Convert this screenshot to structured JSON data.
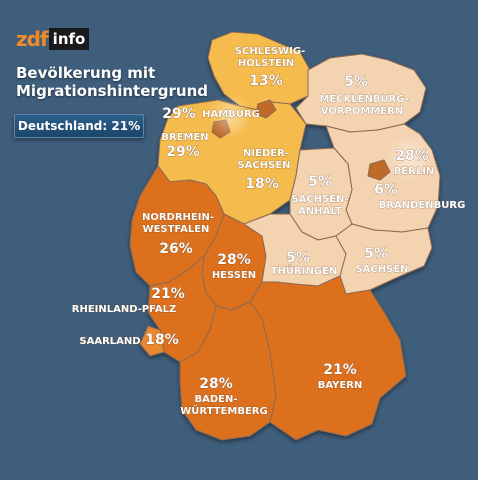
{
  "brand": {
    "zdf": "zdf",
    "info": "info",
    "accent": "#f08a24"
  },
  "title_line1": "Bevölkerung mit",
  "title_line2": "Migrationshintergrund",
  "national": "Deutschland: 21%",
  "colors": {
    "background": "#3f5e7c",
    "very_high": "#dd6f1e",
    "high": "#e8892f",
    "medium": "#f5bb4d",
    "low": "#f4d3b1",
    "city": "#c06a2a",
    "border": "#8a6a52"
  },
  "states": {
    "sh": {
      "name1": "SCHLESWIG-",
      "name2": "HOLSTEIN",
      "pct": "13%",
      "value": 13
    },
    "mv": {
      "name1": "MECKLENBURG-",
      "name2": "VORPOMMERN",
      "pct": "5%",
      "value": 5
    },
    "hh": {
      "name1": "HAMBURG",
      "pct": "29%",
      "value": 29
    },
    "hb": {
      "name1": "BREMEN",
      "pct": "29%",
      "value": 29
    },
    "ni": {
      "name1": "NIEDER-",
      "name2": "SACHSEN",
      "pct": "18%",
      "value": 18
    },
    "be": {
      "name1": "BERLIN",
      "pct": "28%",
      "value": 28
    },
    "bb": {
      "name1": "BRANDENBURG",
      "pct": "6%",
      "value": 6
    },
    "st": {
      "name1": "SACHSEN-",
      "name2": "ANHALT",
      "pct": "5%",
      "value": 5
    },
    "nw": {
      "name1": "NORDRHEIN-",
      "name2": "WESTFALEN",
      "pct": "26%",
      "value": 26
    },
    "he": {
      "name1": "HESSEN",
      "pct": "28%",
      "value": 28
    },
    "th": {
      "name1": "THÜRINGEN",
      "pct": "5%",
      "value": 5
    },
    "sn": {
      "name1": "SACHSEN",
      "pct": "5%",
      "value": 5
    },
    "rp": {
      "name1": "RHEINLAND-PFALZ",
      "pct": "21%",
      "value": 21
    },
    "sl": {
      "name1": "SAARLAND",
      "pct": "18%",
      "value": 18
    },
    "bw": {
      "name1": "BADEN-",
      "name2": "WÜRTTEMBERG",
      "pct": "28%",
      "value": 28
    },
    "by": {
      "name1": "BAYERN",
      "pct": "21%",
      "value": 21
    }
  }
}
